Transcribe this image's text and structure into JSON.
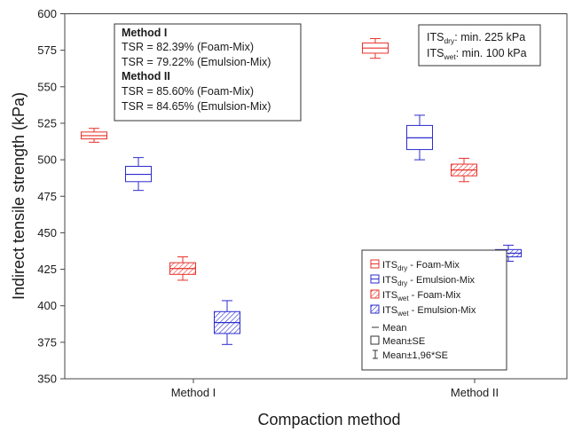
{
  "chart_data": {
    "type": "box",
    "xlabel": "Compaction method",
    "ylabel": "Indirect tensile strength (kPa)",
    "ylim": [
      350,
      600
    ],
    "yticks": [
      350,
      375,
      400,
      425,
      450,
      475,
      500,
      525,
      550,
      575,
      600
    ],
    "categories": [
      "Method I",
      "Method II"
    ],
    "grid": false,
    "series": [
      {
        "name": "ITS_dry - Foam-Mix",
        "label": {
          "base": "ITS",
          "sub": "dry",
          "rest": " - Foam-Mix"
        },
        "color": "#e8312a",
        "hatched": false,
        "values": [
          {
            "category": "Method I",
            "mean": 516.5,
            "se_low": 514.3,
            "se_high": 519.0,
            "ci_low": 512.0,
            "ci_high": 521.5
          },
          {
            "category": "Method II",
            "mean": 576.5,
            "se_low": 573.0,
            "se_high": 580.0,
            "ci_low": 569.5,
            "ci_high": 583.0
          }
        ]
      },
      {
        "name": "ITS_dry - Emulsion-Mix",
        "label": {
          "base": "ITS",
          "sub": "dry",
          "rest": " - Emulsion-Mix"
        },
        "color": "#2c2ccf",
        "hatched": false,
        "values": [
          {
            "category": "Method I",
            "mean": 490.0,
            "se_low": 485.0,
            "se_high": 495.5,
            "ci_low": 479.0,
            "ci_high": 501.5
          },
          {
            "category": "Method II",
            "mean": 515.0,
            "se_low": 507.0,
            "se_high": 523.5,
            "ci_low": 500.0,
            "ci_high": 530.5
          }
        ]
      },
      {
        "name": "ITS_wet - Foam-Mix",
        "label": {
          "base": "ITS",
          "sub": "wet",
          "rest": " - Foam-Mix"
        },
        "color": "#e8312a",
        "hatched": true,
        "values": [
          {
            "category": "Method I",
            "mean": 425.5,
            "se_low": 421.5,
            "se_high": 429.5,
            "ci_low": 417.5,
            "ci_high": 433.5
          },
          {
            "category": "Method II",
            "mean": 493.0,
            "se_low": 489.0,
            "se_high": 497.0,
            "ci_low": 485.0,
            "ci_high": 501.0
          }
        ]
      },
      {
        "name": "ITS_wet - Emulsion-Mix",
        "label": {
          "base": "ITS",
          "sub": "wet",
          "rest": " - Emulsion-Mix"
        },
        "color": "#2c2ccf",
        "hatched": true,
        "values": [
          {
            "category": "Method I",
            "mean": 388.5,
            "se_low": 381.0,
            "se_high": 396.0,
            "ci_low": 373.5,
            "ci_high": 403.5
          },
          {
            "category": "Method II",
            "mean": 436.0,
            "se_low": 433.5,
            "se_high": 438.5,
            "ci_low": 430.5,
            "ci_high": 441.5
          }
        ]
      }
    ],
    "legend_placement": "bottom-right",
    "legend_key": [
      "Mean",
      "Mean±SE",
      "Mean±1,96*SE"
    ],
    "annotations": {
      "tsr_box": [
        {
          "text": "Method I",
          "bold": true
        },
        {
          "text": "TSR = 82.39% (Foam-Mix)",
          "bold": false
        },
        {
          "text": "TSR = 79.22% (Emulsion-Mix)",
          "bold": false
        },
        {
          "text": "Method II",
          "bold": true
        },
        {
          "text": "TSR = 85.60% (Foam-Mix)",
          "bold": false
        },
        {
          "text": "TSR = 84.65% (Emulsion-Mix)",
          "bold": false
        }
      ],
      "limits_box": [
        {
          "base": "ITS",
          "sub": "dry",
          "rest": ": min. 225 kPa"
        },
        {
          "base": "ITS",
          "sub": "wet",
          "rest": ": min. 100 kPa"
        }
      ]
    }
  }
}
